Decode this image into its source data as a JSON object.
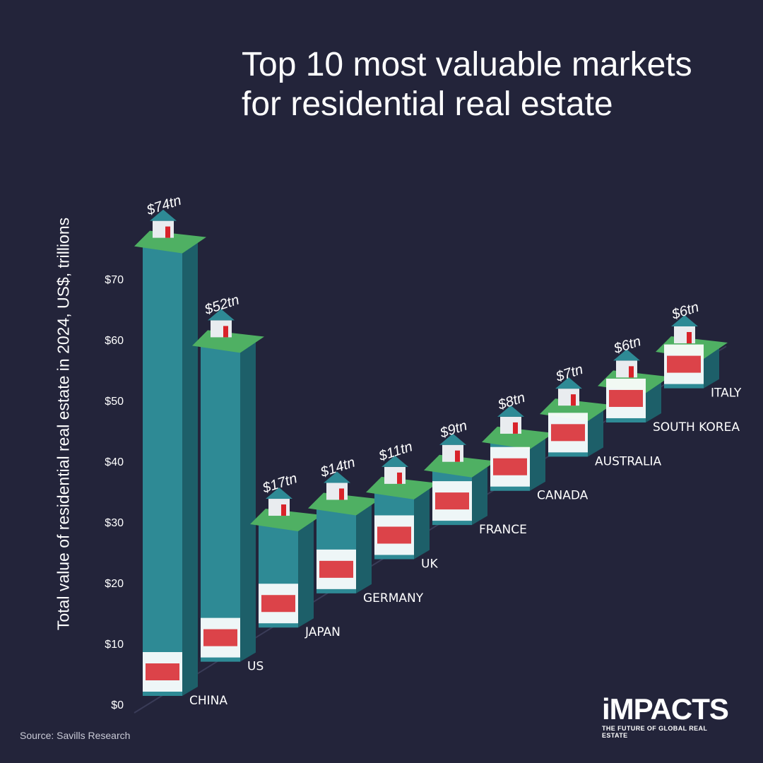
{
  "title": "Top 10 most valuable markets for residential real estate",
  "source": "Source: Savills Research",
  "logo": {
    "word": "iMPACTS",
    "tagline": "THE FUTURE OF GLOBAL REAL ESTATE"
  },
  "colors": {
    "background": "#23243a",
    "bar_front": "#2e8a95",
    "bar_side": "#1d5f69",
    "ground": "#4fb063",
    "ground_side": "#2f7b45"
  },
  "chart_data": {
    "type": "bar",
    "title": "Top 10 most valuable markets for residential real estate",
    "ylabel": "Total value of residential real estate in 2024, US$, trillions",
    "xlabel": "",
    "ylim": [
      0,
      74
    ],
    "yticks": [
      "$0",
      "$10",
      "$20",
      "$30",
      "$40",
      "$50",
      "$60",
      "$70"
    ],
    "categories": [
      "CHINA",
      "US",
      "JAPAN",
      "GERMANY",
      "UK",
      "FRANCE",
      "CANADA",
      "AUSTRALIA",
      "SOUTH KOREA",
      "ITALY"
    ],
    "values": [
      74,
      52,
      17,
      14,
      11,
      9,
      8,
      7,
      6,
      6
    ],
    "value_labels": [
      "$74tn",
      "$52tn",
      "$17tn",
      "$14tn",
      "$11tn",
      "$9tn",
      "$8tn",
      "$7tn",
      "$6tn",
      "$6tn"
    ],
    "grid": false,
    "legend": "none"
  }
}
